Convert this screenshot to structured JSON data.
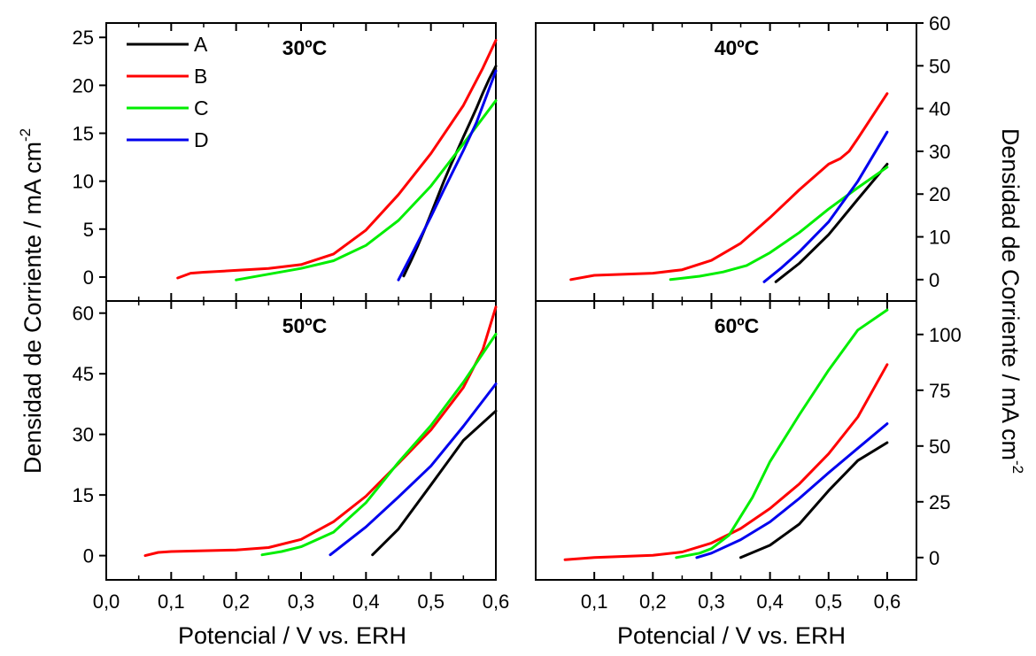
{
  "figure": {
    "xlabel_left": "Potencial / V vs. ERH",
    "xlabel_right": "Potencial / V vs. ERH",
    "ylabel_left": "Densidad de Corriente / mA cm",
    "ylabel_left_sup": "-2",
    "ylabel_right": "Densidad de Corriente / mA cm",
    "ylabel_right_sup": "-2"
  },
  "legend": {
    "placement": "top-left of 30ºC panel",
    "items": [
      {
        "label": "A",
        "color": "#000000"
      },
      {
        "label": "B",
        "color": "#ff0000"
      },
      {
        "label": "C",
        "color": "#00ee00"
      },
      {
        "label": "D",
        "color": "#0000ee"
      }
    ]
  },
  "chart_data": [
    {
      "type": "line",
      "title": "30ºC",
      "xlim": [
        0.0,
        0.6
      ],
      "ylim": [
        -2.5,
        26.5
      ],
      "x_ticks": [
        "0,0",
        "0,1",
        "0,2",
        "0,3",
        "0,4",
        "0,5",
        "0,6"
      ],
      "y_ticks": [
        {
          "value": 0,
          "label": "0"
        },
        {
          "value": 5,
          "label": "5"
        },
        {
          "value": 10,
          "label": "10"
        },
        {
          "value": 15,
          "label": "15"
        },
        {
          "value": 20,
          "label": "20"
        },
        {
          "value": 25,
          "label": "25"
        }
      ],
      "series": [
        {
          "name": "A",
          "color": "#000000",
          "x": [
            0.458,
            0.47,
            0.48,
            0.49,
            0.5,
            0.51,
            0.52,
            0.53,
            0.54,
            0.55,
            0.56,
            0.57,
            0.58,
            0.59,
            0.6
          ],
          "y": [
            0.1,
            1.8,
            3.3,
            4.9,
            6.6,
            8.3,
            10.0,
            11.6,
            13.1,
            14.6,
            16.1,
            17.6,
            19.2,
            20.7,
            22.0
          ]
        },
        {
          "name": "B",
          "color": "#ff0000",
          "x": [
            0.11,
            0.13,
            0.15,
            0.2,
            0.25,
            0.3,
            0.35,
            0.4,
            0.45,
            0.5,
            0.55,
            0.58,
            0.6
          ],
          "y": [
            -0.1,
            0.4,
            0.5,
            0.7,
            0.9,
            1.3,
            2.4,
            4.9,
            8.6,
            12.9,
            17.9,
            21.8,
            24.7
          ]
        },
        {
          "name": "C",
          "color": "#00ee00",
          "x": [
            0.2,
            0.25,
            0.3,
            0.35,
            0.4,
            0.45,
            0.5,
            0.55,
            0.6
          ],
          "y": [
            -0.3,
            0.3,
            0.9,
            1.7,
            3.3,
            5.9,
            9.5,
            13.9,
            18.4
          ]
        },
        {
          "name": "D",
          "color": "#0000ee",
          "x": [
            0.45,
            0.47,
            0.5,
            0.52,
            0.55,
            0.57,
            0.6
          ],
          "y": [
            -0.3,
            2.3,
            6.3,
            9.1,
            13.2,
            16.1,
            21.5
          ]
        }
      ]
    },
    {
      "type": "line",
      "title": "40ºC",
      "xlim": [
        0.0,
        0.65
      ],
      "ylim": [
        -5.0,
        60.0
      ],
      "x_ticks": [
        "0,1",
        "0,2",
        "0,3",
        "0,4",
        "0,5",
        "0,6"
      ],
      "y_ticks": [
        {
          "value": 0,
          "label": "0"
        },
        {
          "value": 10,
          "label": "10"
        },
        {
          "value": 20,
          "label": "20"
        },
        {
          "value": 30,
          "label": "30"
        },
        {
          "value": 40,
          "label": "40"
        },
        {
          "value": 50,
          "label": "50"
        },
        {
          "value": 60,
          "label": "60"
        }
      ],
      "series": [
        {
          "name": "A",
          "color": "#000000",
          "x": [
            0.41,
            0.45,
            0.5,
            0.55,
            0.6
          ],
          "y": [
            -0.5,
            3.8,
            10.5,
            18.8,
            27.0
          ]
        },
        {
          "name": "B",
          "color": "#ff0000",
          "x": [
            0.06,
            0.1,
            0.2,
            0.25,
            0.3,
            0.35,
            0.4,
            0.45,
            0.5,
            0.52,
            0.535,
            0.55,
            0.6
          ],
          "y": [
            0.0,
            1.0,
            1.5,
            2.3,
            4.5,
            8.5,
            14.5,
            21.0,
            27.0,
            28.3,
            30.0,
            33.0,
            43.5
          ]
        },
        {
          "name": "C",
          "color": "#00ee00",
          "x": [
            0.23,
            0.28,
            0.32,
            0.36,
            0.4,
            0.45,
            0.5,
            0.55,
            0.6
          ],
          "y": [
            0.0,
            0.8,
            1.8,
            3.3,
            6.3,
            11.0,
            16.5,
            21.5,
            26.3
          ]
        },
        {
          "name": "D",
          "color": "#0000ee",
          "x": [
            0.39,
            0.42,
            0.45,
            0.5,
            0.55,
            0.6
          ],
          "y": [
            -0.5,
            2.8,
            6.5,
            13.5,
            23.0,
            34.5
          ]
        }
      ]
    },
    {
      "type": "line",
      "title": "50ºC",
      "xlim": [
        0.0,
        0.6
      ],
      "ylim": [
        -6.0,
        63.0
      ],
      "x_ticks": [
        "0,0",
        "0,1",
        "0,2",
        "0,3",
        "0,4",
        "0,5",
        "0,6"
      ],
      "y_ticks": [
        {
          "value": 0,
          "label": "0"
        },
        {
          "value": 15,
          "label": "15"
        },
        {
          "value": 30,
          "label": "30"
        },
        {
          "value": 45,
          "label": "45"
        },
        {
          "value": 60,
          "label": "60"
        }
      ],
      "series": [
        {
          "name": "A",
          "color": "#000000",
          "x": [
            0.41,
            0.45,
            0.5,
            0.55,
            0.6
          ],
          "y": [
            0.2,
            6.6,
            17.5,
            28.5,
            35.8
          ]
        },
        {
          "name": "B",
          "color": "#ff0000",
          "x": [
            0.06,
            0.08,
            0.1,
            0.2,
            0.25,
            0.3,
            0.35,
            0.4,
            0.45,
            0.5,
            0.55,
            0.58,
            0.6
          ],
          "y": [
            0.0,
            0.8,
            1.0,
            1.4,
            2.0,
            4.0,
            8.4,
            14.7,
            22.8,
            31.1,
            41.6,
            51.0,
            61.5
          ]
        },
        {
          "name": "C",
          "color": "#00ee00",
          "x": [
            0.24,
            0.27,
            0.3,
            0.35,
            0.4,
            0.45,
            0.5,
            0.55,
            0.6
          ],
          "y": [
            0.2,
            1.0,
            2.2,
            5.8,
            13.1,
            23.1,
            32.2,
            42.9,
            54.8
          ]
        },
        {
          "name": "D",
          "color": "#0000ee",
          "x": [
            0.345,
            0.4,
            0.45,
            0.5,
            0.55,
            0.6
          ],
          "y": [
            0.2,
            7.1,
            14.5,
            22.2,
            32.0,
            42.5
          ]
        }
      ]
    },
    {
      "type": "line",
      "title": "60ºC",
      "xlim": [
        0.0,
        0.65
      ],
      "ylim": [
        -10.0,
        115.0
      ],
      "x_ticks": [
        "0,1",
        "0,2",
        "0,3",
        "0,4",
        "0,5",
        "0,6"
      ],
      "y_ticks": [
        {
          "value": 0,
          "label": "0"
        },
        {
          "value": 25,
          "label": "25"
        },
        {
          "value": 50,
          "label": "50"
        },
        {
          "value": 75,
          "label": "75"
        },
        {
          "value": 100,
          "label": "100"
        }
      ],
      "series": [
        {
          "name": "A",
          "color": "#000000",
          "x": [
            0.35,
            0.4,
            0.45,
            0.5,
            0.55,
            0.6
          ],
          "y": [
            0.0,
            5.5,
            15.0,
            30.0,
            43.5,
            51.5
          ]
        },
        {
          "name": "B",
          "color": "#ff0000",
          "x": [
            0.05,
            0.1,
            0.2,
            0.25,
            0.3,
            0.35,
            0.4,
            0.45,
            0.5,
            0.55,
            0.6
          ],
          "y": [
            -1.0,
            0.0,
            1.0,
            2.5,
            6.5,
            13.0,
            22.0,
            33.0,
            46.5,
            63.0,
            86.5
          ]
        },
        {
          "name": "C",
          "color": "#00ee00",
          "x": [
            0.24,
            0.28,
            0.3,
            0.33,
            0.37,
            0.4,
            0.45,
            0.5,
            0.55,
            0.6
          ],
          "y": [
            0.0,
            2.0,
            4.0,
            10.0,
            27.0,
            43.0,
            64.0,
            84.0,
            102.0,
            111.0
          ]
        },
        {
          "name": "D",
          "color": "#0000ee",
          "x": [
            0.275,
            0.3,
            0.35,
            0.4,
            0.45,
            0.5,
            0.55,
            0.6
          ],
          "y": [
            0.0,
            2.0,
            8.0,
            16.0,
            26.5,
            38.0,
            49.0,
            60.0
          ]
        }
      ]
    }
  ]
}
